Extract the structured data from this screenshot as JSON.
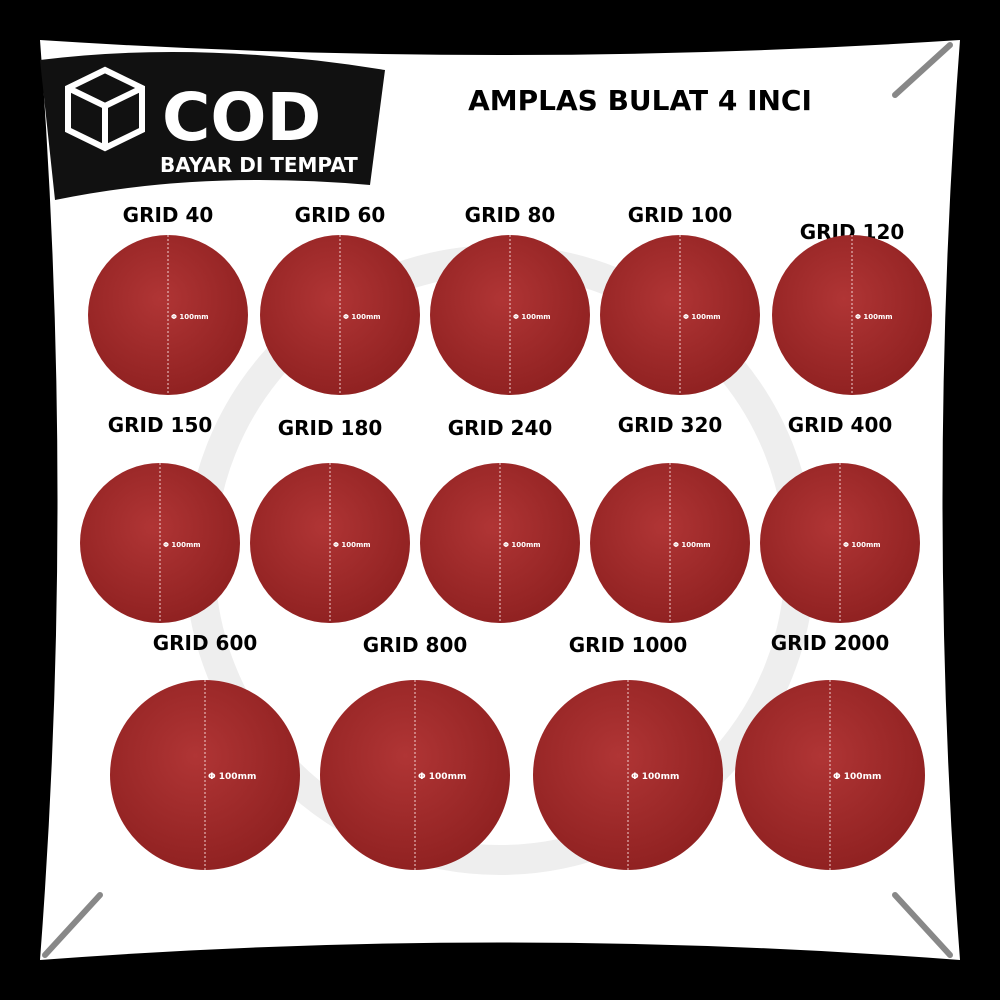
{
  "header": {
    "badge_title": "COD",
    "badge_subtitle": "BAYAR DI TEMPAT",
    "title": "AMPLAS BULAT 4 INCI"
  },
  "discs": [
    {
      "label": "GRID 40",
      "size": "Φ 100mm"
    },
    {
      "label": "GRID 60",
      "size": "Φ 100mm"
    },
    {
      "label": "GRID 80",
      "size": "Φ 100mm"
    },
    {
      "label": "GRID 100",
      "size": "Φ 100mm"
    },
    {
      "label": "GRID 120",
      "size": "Φ 100mm"
    },
    {
      "label": "GRID 150",
      "size": "Φ 100mm"
    },
    {
      "label": "GRID 180",
      "size": "Φ 100mm"
    },
    {
      "label": "GRID 240",
      "size": "Φ 100mm"
    },
    {
      "label": "GRID 320",
      "size": "Φ 100mm"
    },
    {
      "label": "GRID 400",
      "size": "Φ 100mm"
    },
    {
      "label": "GRID 600",
      "size": "Φ 100mm"
    },
    {
      "label": "GRID 800",
      "size": "Φ 100mm"
    },
    {
      "label": "GRID 1000",
      "size": "Φ 100mm"
    },
    {
      "label": "GRID 2000",
      "size": "Φ 100mm"
    }
  ]
}
